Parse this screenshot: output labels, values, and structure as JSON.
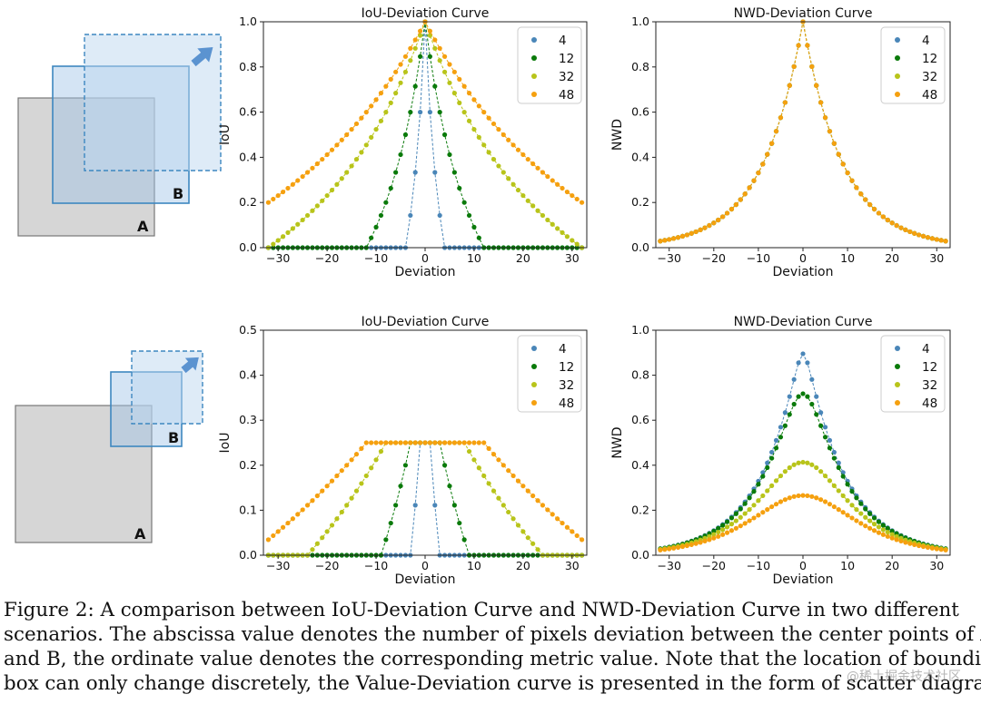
{
  "scenarios": [
    {
      "diagram": {
        "box_a_label": "A",
        "box_b_label": "B",
        "arrow_icon": "arrow-up-right-icon"
      },
      "charts": [
        {
          "id": "r1-iou"
        },
        {
          "id": "r1-nwd"
        }
      ]
    },
    {
      "diagram": {
        "box_a_label": "A",
        "box_b_label": "B",
        "arrow_icon": "arrow-up-right-icon"
      },
      "charts": [
        {
          "id": "r2-iou"
        },
        {
          "id": "r2-nwd"
        }
      ]
    }
  ],
  "chart_data": [
    {
      "type": "scatter",
      "title": "IoU-Deviation Curve",
      "xlabel": "Deviation",
      "ylabel": "IoU",
      "xlim": [
        -33,
        33
      ],
      "ylim": [
        0,
        1
      ],
      "xticks": [
        "−30",
        "−20",
        "−10",
        "0",
        "10",
        "20",
        "30"
      ],
      "xtick_values": [
        -30,
        -20,
        -10,
        0,
        10,
        20,
        30
      ],
      "yticks": [
        "0.0",
        "0.2",
        "0.4",
        "0.6",
        "0.8",
        "1.0"
      ],
      "ytick_values": [
        0,
        0.2,
        0.4,
        0.6,
        0.8,
        1.0
      ],
      "legend_position": "top-right",
      "x_range": [
        -32,
        32
      ],
      "series": [
        {
          "name": "4",
          "color": "#4a86b8",
          "formula": "iou_same_size",
          "size": 4
        },
        {
          "name": "12",
          "color": "#0a7a0a",
          "formula": "iou_same_size",
          "size": 12
        },
        {
          "name": "32",
          "color": "#b8c41a",
          "formula": "iou_same_size",
          "size": 32
        },
        {
          "name": "48",
          "color": "#f5a00f",
          "formula": "iou_same_size",
          "size": 48
        }
      ]
    },
    {
      "type": "scatter",
      "title": "NWD-Deviation Curve",
      "xlabel": "Deviation",
      "ylabel": "NWD",
      "xlim": [
        -33,
        33
      ],
      "ylim": [
        0,
        1
      ],
      "xticks": [
        "−30",
        "−20",
        "−10",
        "0",
        "10",
        "20",
        "30"
      ],
      "xtick_values": [
        -30,
        -20,
        -10,
        0,
        10,
        20,
        30
      ],
      "yticks": [
        "0.0",
        "0.2",
        "0.4",
        "0.6",
        "0.8",
        "1.0"
      ],
      "ytick_values": [
        0,
        0.2,
        0.4,
        0.6,
        0.8,
        1.0
      ],
      "legend_position": "top-right",
      "x_range": [
        -32,
        32
      ],
      "series": [
        {
          "name": "4",
          "color": "#4a86b8",
          "formula": "nwd_same_size",
          "size": 4
        },
        {
          "name": "12",
          "color": "#0a7a0a",
          "formula": "nwd_same_size",
          "size": 12
        },
        {
          "name": "32",
          "color": "#b8c41a",
          "formula": "nwd_same_size",
          "size": 32
        },
        {
          "name": "48",
          "color": "#f5a00f",
          "formula": "nwd_same_size",
          "size": 48
        }
      ]
    },
    {
      "type": "scatter",
      "title": "IoU-Deviation Curve",
      "xlabel": "Deviation",
      "ylabel": "IoU",
      "xlim": [
        -33,
        33
      ],
      "ylim": [
        0,
        0.5
      ],
      "xticks": [
        "−30",
        "−20",
        "−10",
        "0",
        "10",
        "20",
        "30"
      ],
      "xtick_values": [
        -30,
        -20,
        -10,
        0,
        10,
        20,
        30
      ],
      "yticks": [
        "0.0",
        "0.1",
        "0.2",
        "0.3",
        "0.4",
        "0.5"
      ],
      "ytick_values": [
        0,
        0.1,
        0.2,
        0.3,
        0.4,
        0.5
      ],
      "legend_position": "top-right",
      "x_range": [
        -32,
        32
      ],
      "series": [
        {
          "name": "4",
          "color": "#4a86b8",
          "formula": "iou_half_size",
          "size": 4
        },
        {
          "name": "12",
          "color": "#0a7a0a",
          "formula": "iou_half_size",
          "size": 12
        },
        {
          "name": "32",
          "color": "#b8c41a",
          "formula": "iou_half_size",
          "size": 32
        },
        {
          "name": "48",
          "color": "#f5a00f",
          "formula": "iou_half_size",
          "size": 48
        }
      ]
    },
    {
      "type": "scatter",
      "title": "NWD-Deviation Curve",
      "xlabel": "Deviation",
      "ylabel": "NWD",
      "xlim": [
        -33,
        33
      ],
      "ylim": [
        0,
        1
      ],
      "xticks": [
        "−30",
        "−20",
        "−10",
        "0",
        "10",
        "20",
        "30"
      ],
      "xtick_values": [
        -30,
        -20,
        -10,
        0,
        10,
        20,
        30
      ],
      "yticks": [
        "0.0",
        "0.2",
        "0.4",
        "0.6",
        "0.8",
        "1.0"
      ],
      "ytick_values": [
        0,
        0.2,
        0.4,
        0.6,
        0.8,
        1.0
      ],
      "legend_position": "top-right",
      "x_range": [
        -32,
        32
      ],
      "series": [
        {
          "name": "4",
          "color": "#4a86b8",
          "formula": "nwd_half_size",
          "size": 4
        },
        {
          "name": "12",
          "color": "#0a7a0a",
          "formula": "nwd_half_size",
          "size": 12
        },
        {
          "name": "32",
          "color": "#b8c41a",
          "formula": "nwd_half_size",
          "size": 32
        },
        {
          "name": "48",
          "color": "#f5a00f",
          "formula": "nwd_half_size",
          "size": 48
        }
      ]
    }
  ],
  "caption": {
    "lines": [
      "Figure 2: A comparison between IoU-Deviation Curve and NWD-Deviation Curve in two different",
      "scenarios. The abscissa value denotes the number of pixels deviation between the center points of A",
      "and B, the ordinate value denotes the corresponding metric value. Note that the location of bounding",
      "box can only change discretely, the Value-Deviation curve is presented in the form of scatter diagram."
    ]
  },
  "watermark": "@稀土掘金技术社区"
}
